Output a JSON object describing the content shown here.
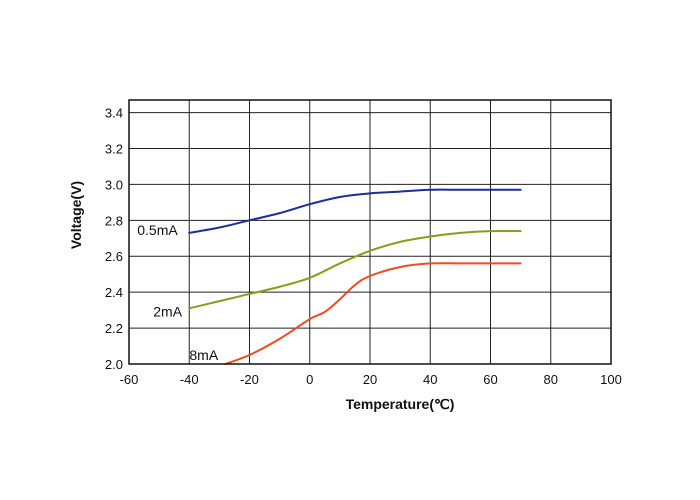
{
  "chart_data": {
    "type": "line",
    "xlabel": "Temperature(℃)",
    "ylabel": "Voltage(V)",
    "xlim": [
      -60,
      100
    ],
    "ylim": [
      2.0,
      3.5
    ],
    "x_ticks": [
      -60,
      -40,
      -20,
      0,
      20,
      40,
      60,
      80,
      100
    ],
    "y_ticks": [
      2.0,
      2.2,
      2.4,
      2.6,
      2.8,
      3.0,
      3.2,
      3.4
    ],
    "x_tick_labels": [
      "-60",
      "-40",
      "-20",
      "0",
      "20",
      "40",
      "60",
      "80",
      "100"
    ],
    "y_tick_labels": [
      "2.0",
      "2.2",
      "2.4",
      "2.6",
      "2.8",
      "3.0",
      "3.2",
      "3.4"
    ],
    "grid": true,
    "series": [
      {
        "name": "0.5mA",
        "color": "#1f2a9c",
        "points": [
          [
            -40,
            2.73
          ],
          [
            -30,
            2.76
          ],
          [
            -20,
            2.8
          ],
          [
            -10,
            2.84
          ],
          [
            0,
            2.89
          ],
          [
            10,
            2.93
          ],
          [
            20,
            2.95
          ],
          [
            30,
            2.96
          ],
          [
            40,
            2.97
          ],
          [
            50,
            2.97
          ],
          [
            60,
            2.97
          ],
          [
            70,
            2.97
          ]
        ]
      },
      {
        "name": "2mA",
        "color": "#7ea218",
        "points": [
          [
            -40,
            2.31
          ],
          [
            -30,
            2.35
          ],
          [
            -20,
            2.39
          ],
          [
            -10,
            2.43
          ],
          [
            0,
            2.48
          ],
          [
            10,
            2.56
          ],
          [
            20,
            2.63
          ],
          [
            30,
            2.68
          ],
          [
            40,
            2.71
          ],
          [
            50,
            2.73
          ],
          [
            60,
            2.74
          ],
          [
            70,
            2.74
          ]
        ]
      },
      {
        "name": "8mA",
        "color": "#f04a1e",
        "points": [
          [
            -28,
            2.0
          ],
          [
            -20,
            2.05
          ],
          [
            -10,
            2.14
          ],
          [
            0,
            2.25
          ],
          [
            5,
            2.29
          ],
          [
            10,
            2.36
          ],
          [
            15,
            2.44
          ],
          [
            20,
            2.49
          ],
          [
            30,
            2.54
          ],
          [
            40,
            2.56
          ],
          [
            50,
            2.56
          ],
          [
            60,
            2.56
          ],
          [
            70,
            2.56
          ]
        ]
      }
    ]
  }
}
